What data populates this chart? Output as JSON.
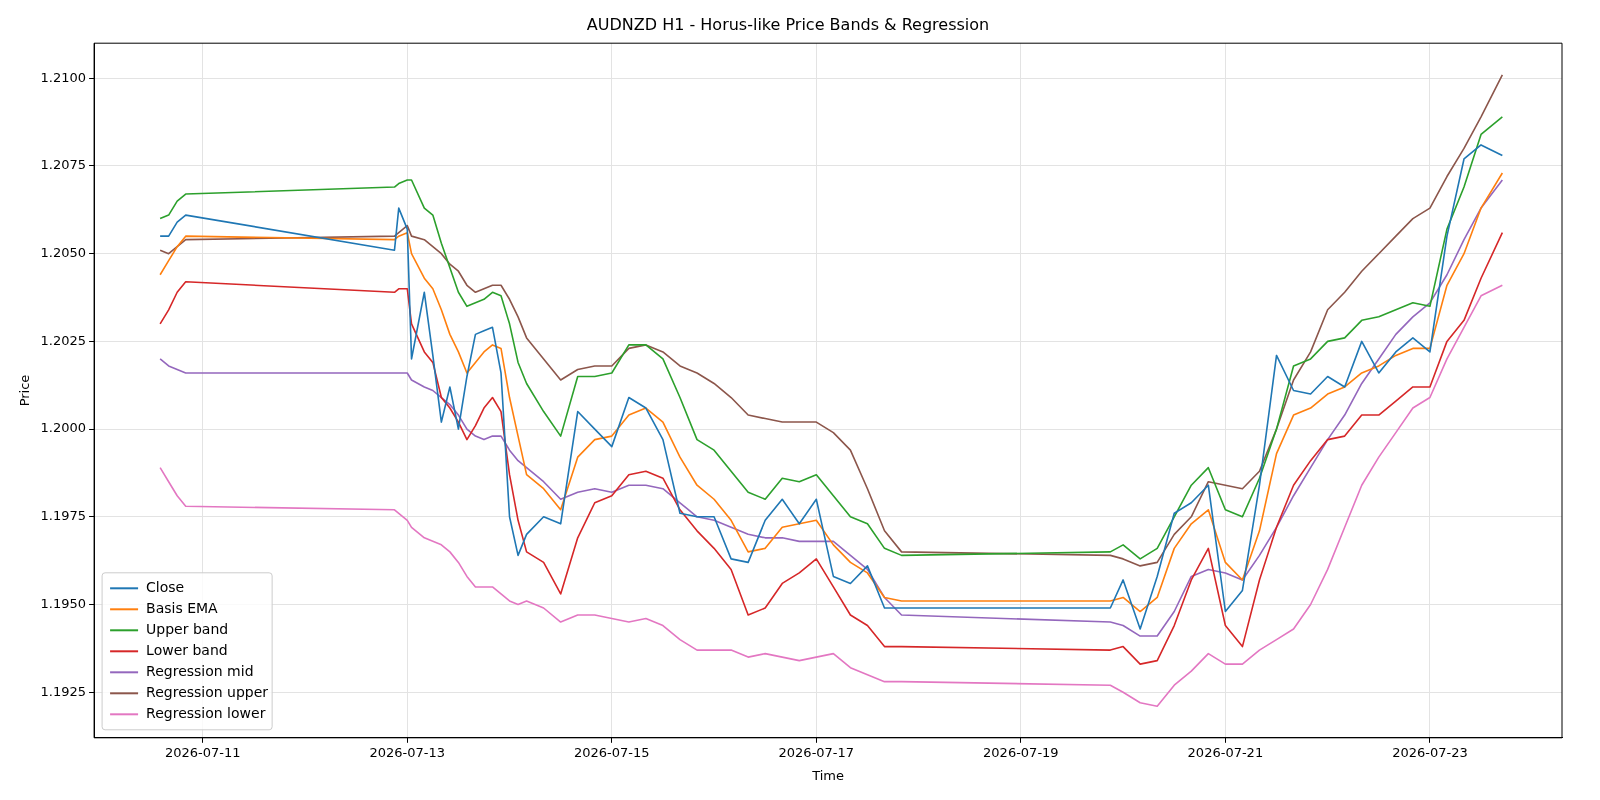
{
  "chart_data": {
    "type": "line",
    "title": "AUDNZD H1 - Horus-like Price Bands & Regression",
    "xlabel": "Time",
    "ylabel": "Price",
    "x": [
      "2026-07-10T14:00",
      "2026-07-10T16:00",
      "2026-07-10T18:00",
      "2026-07-10T20:00",
      "2026-07-12T21:00",
      "2026-07-12T22:00",
      "2026-07-13T00:00",
      "2026-07-13T01:00",
      "2026-07-13T04:00",
      "2026-07-13T06:00",
      "2026-07-13T08:00",
      "2026-07-13T10:00",
      "2026-07-13T12:00",
      "2026-07-13T14:00",
      "2026-07-13T16:00",
      "2026-07-13T18:00",
      "2026-07-13T20:00",
      "2026-07-13T22:00",
      "2026-07-14T00:00",
      "2026-07-14T02:00",
      "2026-07-14T04:00",
      "2026-07-14T08:00",
      "2026-07-14T12:00",
      "2026-07-14T16:00",
      "2026-07-14T20:00",
      "2026-07-15T00:00",
      "2026-07-15T04:00",
      "2026-07-15T08:00",
      "2026-07-15T12:00",
      "2026-07-15T16:00",
      "2026-07-15T20:00",
      "2026-07-16T00:00",
      "2026-07-16T04:00",
      "2026-07-16T08:00",
      "2026-07-16T12:00",
      "2026-07-16T16:00",
      "2026-07-16T20:00",
      "2026-07-17T00:00",
      "2026-07-17T04:00",
      "2026-07-17T08:00",
      "2026-07-17T12:00",
      "2026-07-17T16:00",
      "2026-07-17T20:00",
      "2026-07-19T21:00",
      "2026-07-20T00:00",
      "2026-07-20T04:00",
      "2026-07-20T08:00",
      "2026-07-20T12:00",
      "2026-07-20T16:00",
      "2026-07-20T20:00",
      "2026-07-21T00:00",
      "2026-07-21T04:00",
      "2026-07-21T08:00",
      "2026-07-21T12:00",
      "2026-07-21T16:00",
      "2026-07-21T20:00",
      "2026-07-22T00:00",
      "2026-07-22T04:00",
      "2026-07-22T08:00",
      "2026-07-22T12:00",
      "2026-07-22T16:00",
      "2026-07-22T20:00",
      "2026-07-23T00:00",
      "2026-07-23T04:00",
      "2026-07-23T08:00",
      "2026-07-23T12:00",
      "2026-07-23T17:00"
    ],
    "series": [
      {
        "name": "Close",
        "color": "#1f77b4",
        "values": [
          1.2055,
          1.2055,
          1.2059,
          1.2061,
          1.2051,
          1.2063,
          1.2057,
          1.202,
          1.2039,
          1.2021,
          1.2002,
          1.2012,
          1.2,
          1.2015,
          1.2027,
          1.2028,
          1.2029,
          1.2016,
          1.1975,
          1.1964,
          1.197,
          1.1975,
          1.1973,
          1.2005,
          1.2,
          1.1995,
          1.2009,
          1.2006,
          1.1997,
          1.1976,
          1.1975,
          1.1975,
          1.1963,
          1.1962,
          1.1974,
          1.198,
          1.1973,
          1.198,
          1.1958,
          1.1956,
          1.1961,
          1.1949,
          1.1949,
          1.1949,
          1.1957,
          1.1943,
          1.1958,
          1.1976,
          1.1979,
          1.1984,
          1.1948,
          1.1954,
          1.1984,
          1.2021,
          1.2011,
          1.201,
          1.2015,
          1.2012,
          1.2025,
          1.2016,
          1.2022,
          1.2026,
          1.2022,
          1.2055,
          1.2077,
          1.2081,
          1.2078
        ]
      },
      {
        "name": "Basis EMA",
        "color": "#ff7f0e",
        "values": [
          1.2044,
          1.2048,
          1.2052,
          1.2055,
          1.2054,
          1.2055,
          1.2056,
          1.205,
          1.2043,
          1.204,
          1.2034,
          1.2027,
          1.2022,
          1.2016,
          1.2019,
          1.2022,
          1.2024,
          1.2023,
          1.2009,
          1.1998,
          1.1987,
          1.1983,
          1.1977,
          1.1992,
          1.1997,
          1.1998,
          1.2004,
          1.2006,
          1.2002,
          1.1992,
          1.1984,
          1.198,
          1.1974,
          1.1965,
          1.1966,
          1.1972,
          1.1973,
          1.1974,
          1.1967,
          1.1962,
          1.1959,
          1.1952,
          1.1951,
          1.1951,
          1.1952,
          1.1948,
          1.1952,
          1.1966,
          1.1973,
          1.1977,
          1.1962,
          1.1957,
          1.1971,
          1.1993,
          1.2004,
          1.2006,
          1.201,
          1.2012,
          1.2016,
          1.2018,
          1.2021,
          1.2023,
          1.2023,
          1.2041,
          1.205,
          1.2063,
          1.2073
        ]
      },
      {
        "name": "Upper band",
        "color": "#2ca02c",
        "values": [
          1.206,
          1.2061,
          1.2065,
          1.2067,
          1.2069,
          1.207,
          1.2071,
          1.2071,
          1.2063,
          1.2061,
          1.2053,
          1.2046,
          1.2039,
          1.2035,
          1.2036,
          1.2037,
          1.2039,
          1.2038,
          1.203,
          1.2019,
          1.2013,
          1.2005,
          1.1998,
          1.2015,
          1.2015,
          1.2016,
          1.2024,
          1.2024,
          1.202,
          1.2009,
          1.1997,
          1.1994,
          1.1988,
          1.1982,
          1.198,
          1.1986,
          1.1985,
          1.1987,
          1.1981,
          1.1975,
          1.1973,
          1.1966,
          1.1964,
          1.1965,
          1.1967,
          1.1963,
          1.1966,
          1.1975,
          1.1984,
          1.1989,
          1.1977,
          1.1975,
          1.1986,
          1.2,
          1.2018,
          1.202,
          1.2025,
          1.2026,
          1.2031,
          1.2032,
          1.2034,
          1.2036,
          1.2035,
          1.2057,
          1.2069,
          1.2084,
          1.2089
        ]
      },
      {
        "name": "Lower band",
        "color": "#d62728",
        "values": [
          1.203,
          1.2034,
          1.2039,
          1.2042,
          1.2039,
          1.204,
          1.204,
          1.203,
          1.2022,
          1.2019,
          1.2009,
          1.2006,
          1.2002,
          1.1997,
          1.2001,
          1.2006,
          1.2009,
          1.2005,
          1.1987,
          1.1974,
          1.1965,
          1.1962,
          1.1953,
          1.1969,
          1.1979,
          1.1981,
          1.1987,
          1.1988,
          1.1986,
          1.1977,
          1.1971,
          1.1966,
          1.196,
          1.1947,
          1.1949,
          1.1956,
          1.1959,
          1.1963,
          1.1955,
          1.1947,
          1.1944,
          1.1938,
          1.1938,
          1.1937,
          1.1938,
          1.1933,
          1.1934,
          1.1944,
          1.1957,
          1.1966,
          1.1944,
          1.1938,
          1.1957,
          1.1972,
          1.1984,
          1.1991,
          1.1997,
          1.1998,
          1.2004,
          1.2004,
          1.2008,
          1.2012,
          1.2012,
          1.2025,
          1.2031,
          1.2043,
          1.2056
        ]
      },
      {
        "name": "Regression mid",
        "color": "#9467bd",
        "values": [
          1.202,
          1.2018,
          1.2017,
          1.2016,
          1.2016,
          1.2016,
          1.2016,
          1.2014,
          1.2012,
          1.2011,
          1.2009,
          1.2007,
          1.2004,
          1.2,
          1.1998,
          1.1997,
          1.1998,
          1.1998,
          1.1994,
          1.1991,
          1.1989,
          1.1985,
          1.198,
          1.1982,
          1.1983,
          1.1982,
          1.1984,
          1.1984,
          1.1983,
          1.1979,
          1.1975,
          1.1974,
          1.1972,
          1.197,
          1.1969,
          1.1969,
          1.1968,
          1.1968,
          1.1968,
          1.1964,
          1.196,
          1.1952,
          1.1947,
          1.1945,
          1.1944,
          1.1941,
          1.1941,
          1.1948,
          1.1958,
          1.196,
          1.1959,
          1.1957,
          1.1964,
          1.1972,
          1.1981,
          1.1989,
          1.1997,
          1.2004,
          1.2013,
          1.202,
          1.2027,
          1.2032,
          1.2036,
          1.2044,
          1.2054,
          1.2063,
          1.2071
        ]
      },
      {
        "name": "Regression upper",
        "color": "#8c564b",
        "values": [
          1.2051,
          1.205,
          1.2052,
          1.2054,
          1.2055,
          1.2056,
          1.2058,
          1.2055,
          1.2054,
          1.2052,
          1.205,
          1.2047,
          1.2045,
          1.2041,
          1.2039,
          1.204,
          1.2041,
          1.2041,
          1.2037,
          1.2032,
          1.2026,
          1.202,
          1.2014,
          1.2017,
          1.2018,
          1.2018,
          1.2023,
          1.2024,
          1.2022,
          1.2018,
          1.2016,
          1.2013,
          1.2009,
          1.2004,
          1.2003,
          1.2002,
          1.2002,
          1.2002,
          1.1999,
          1.1994,
          1.1983,
          1.1971,
          1.1965,
          1.1964,
          1.1963,
          1.1961,
          1.1962,
          1.197,
          1.1975,
          1.1985,
          1.1984,
          1.1983,
          1.1988,
          1.2,
          1.2014,
          1.2022,
          1.2034,
          1.2039,
          1.2045,
          1.205,
          1.2055,
          1.206,
          1.2063,
          1.2072,
          1.208,
          1.2089,
          1.2101
        ]
      },
      {
        "name": "Regression lower",
        "color": "#e377c2",
        "values": [
          1.1989,
          1.1985,
          1.1981,
          1.1978,
          1.1977,
          1.1976,
          1.1974,
          1.1972,
          1.1969,
          1.1968,
          1.1967,
          1.1965,
          1.1962,
          1.1958,
          1.1955,
          1.1955,
          1.1955,
          1.1953,
          1.1951,
          1.195,
          1.1951,
          1.1949,
          1.1945,
          1.1947,
          1.1947,
          1.1946,
          1.1945,
          1.1946,
          1.1944,
          1.194,
          1.1937,
          1.1937,
          1.1937,
          1.1935,
          1.1936,
          1.1935,
          1.1934,
          1.1935,
          1.1936,
          1.1932,
          1.193,
          1.1928,
          1.1928,
          1.1927,
          1.1925,
          1.1922,
          1.1921,
          1.1927,
          1.1931,
          1.1936,
          1.1933,
          1.1933,
          1.1937,
          1.194,
          1.1943,
          1.195,
          1.196,
          1.1972,
          1.1984,
          1.1992,
          1.1999,
          1.2006,
          1.2009,
          1.202,
          1.2029,
          1.2038,
          1.2041
        ]
      }
    ],
    "xlim": [
      "2026-07-09T22:30",
      "2026-07-24T07:00"
    ],
    "xticks": [
      "2026-07-11",
      "2026-07-13",
      "2026-07-15",
      "2026-07-17",
      "2026-07-19",
      "2026-07-21",
      "2026-07-23"
    ],
    "ylim": [
      1.1912,
      1.211
    ],
    "yticks": [
      1.1925,
      {
        "value": 1.195,
        "label": "1.1950"
      },
      1.1975,
      {
        "value": 1.2,
        "label": "1.2000"
      },
      1.2025,
      {
        "value": 1.205,
        "label": "1.2050"
      },
      1.2075,
      {
        "value": 1.21,
        "label": "1.2100"
      }
    ],
    "grid": true,
    "legend": "bottom left",
    "marker": "none",
    "line_style": "solid"
  }
}
